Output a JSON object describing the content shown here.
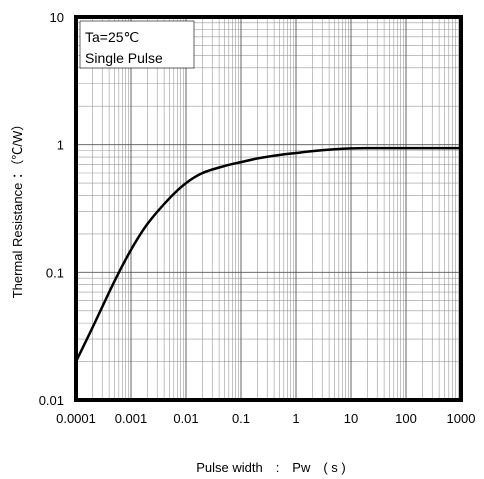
{
  "chart_data": {
    "type": "line",
    "title": "",
    "xlabel": "Pulse width　:　Pw　( s )",
    "ylabel": "Thermal Resistance ：（℃/W）",
    "x_scale": "log",
    "y_scale": "log",
    "xlim": [
      0.0001,
      1000
    ],
    "ylim": [
      0.01,
      10
    ],
    "x_ticks": [
      "0.0001",
      "0.001",
      "0.01",
      "0.1",
      "1",
      "10",
      "100",
      "1000"
    ],
    "y_ticks": [
      "0.01",
      "0.1",
      "1",
      "10"
    ],
    "grid": true,
    "annotation": [
      "Ta=25℃",
      "Single Pulse"
    ],
    "series": [
      {
        "x": [
          0.0001,
          0.0002,
          0.0005,
          0.001,
          0.002,
          0.005,
          0.01,
          0.02,
          0.05,
          0.1,
          0.2,
          0.5,
          1,
          2,
          5,
          10,
          20,
          50,
          100,
          1000
        ],
        "y": [
          0.02,
          0.037,
          0.085,
          0.15,
          0.24,
          0.38,
          0.5,
          0.6,
          0.68,
          0.73,
          0.78,
          0.83,
          0.86,
          0.89,
          0.92,
          0.935,
          0.94,
          0.94,
          0.94,
          0.94
        ]
      }
    ]
  }
}
